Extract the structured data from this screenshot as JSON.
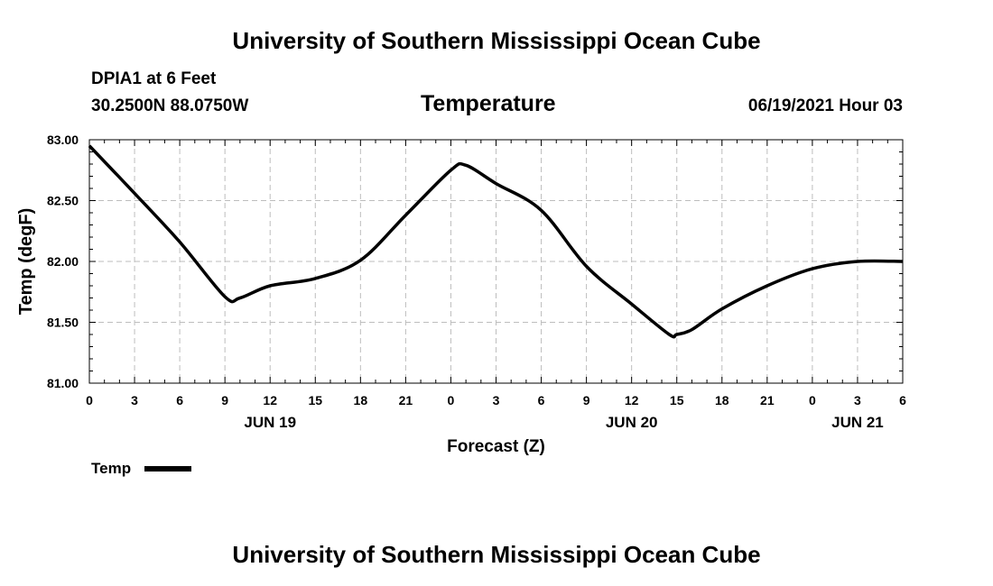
{
  "header": {
    "title_top": "University of Southern Mississippi Ocean Cube",
    "station": "DPIA1 at 6 Feet",
    "coords": "30.2500N  88.0750W",
    "chart_title": "Temperature",
    "issued": "06/19/2021 Hour 03",
    "title_bottom": "University of Southern Mississippi Ocean Cube"
  },
  "chart_data": {
    "type": "line",
    "title": "Temperature",
    "xlabel": "Forecast (Z)",
    "ylabel": "Temp (degF)",
    "ylim": [
      81.0,
      83.0
    ],
    "xlim": [
      0,
      54
    ],
    "grid": true,
    "yticks": [
      "81.00",
      "81.50",
      "82.00",
      "82.50",
      "83.00"
    ],
    "ytick_values": [
      81.0,
      81.5,
      82.0,
      82.5,
      83.0
    ],
    "xtick_hours": [
      0,
      3,
      6,
      9,
      12,
      15,
      18,
      21,
      24,
      27,
      30,
      33,
      36,
      39,
      42,
      45,
      48,
      51,
      54
    ],
    "xtick_labels": [
      "0",
      "3",
      "6",
      "9",
      "12",
      "15",
      "18",
      "21",
      "0",
      "3",
      "6",
      "9",
      "12",
      "15",
      "18",
      "21",
      "0",
      "3",
      "6"
    ],
    "date_labels": [
      {
        "label": "JUN 19",
        "hour": 12
      },
      {
        "label": "JUN 20",
        "hour": 36
      },
      {
        "label": "JUN 21",
        "hour": 51
      }
    ],
    "legend": {
      "label": "Temp",
      "position": "bottom-left"
    },
    "series": [
      {
        "name": "Temp",
        "x": [
          0,
          3,
          6,
          9,
          10,
          12,
          15,
          18,
          21,
          24,
          25,
          27,
          30,
          33,
          36,
          38.5,
          39,
          40,
          42,
          45,
          48,
          51,
          54
        ],
        "values": [
          82.95,
          82.56,
          82.16,
          81.71,
          81.7,
          81.8,
          81.86,
          82.01,
          82.38,
          82.75,
          82.79,
          82.64,
          82.42,
          81.96,
          81.65,
          81.4,
          81.4,
          81.44,
          81.61,
          81.8,
          81.94,
          82.0,
          82.0
        ]
      }
    ]
  }
}
